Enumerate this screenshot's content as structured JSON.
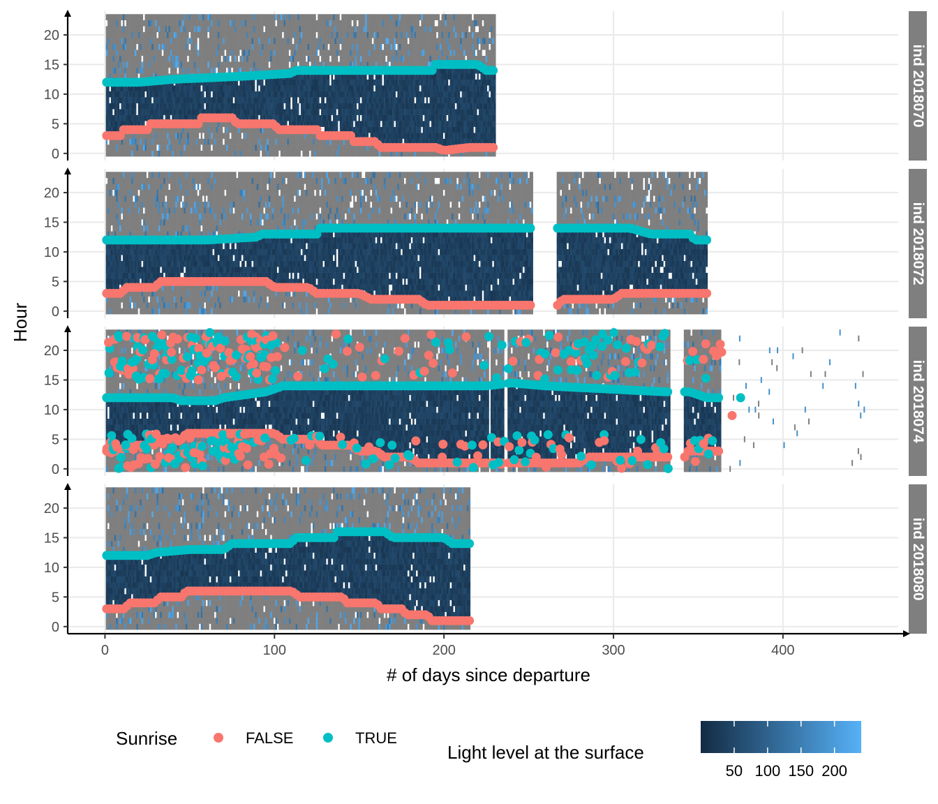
{
  "chart_data": {
    "type": "heatmap",
    "xlabel": "# of days since departure",
    "ylabel": "Hour",
    "xlim": [
      -22,
      468
    ],
    "ylim": [
      -1.2,
      24
    ],
    "x_ticks": [
      0,
      100,
      200,
      300,
      400
    ],
    "y_ticks": [
      0,
      5,
      10,
      15,
      20
    ],
    "grid": true,
    "fill_scale": {
      "title": "Light level at the surface",
      "ticks": [
        50,
        100,
        150,
        200
      ],
      "range": [
        0,
        240
      ],
      "low_color": "#132b43",
      "high_color": "#56b1f7",
      "na_color": "#7f7f7f"
    },
    "color_scale": {
      "title": "Sunrise",
      "entries": [
        {
          "label": "FALSE",
          "color": "#f8766d"
        },
        {
          "label": "TRUE",
          "color": "#00bfc4"
        }
      ]
    },
    "panels": [
      {
        "label": "ind_2018070",
        "data_ranges": [
          [
            0.5,
            230.5
          ]
        ],
        "sunrise_true": [
          [
            0,
            12
          ],
          [
            20,
            12
          ],
          [
            40,
            12.5
          ],
          [
            80,
            13
          ],
          [
            110,
            13.5
          ],
          [
            112,
            14
          ],
          [
            160,
            14
          ],
          [
            193,
            14
          ],
          [
            195,
            15
          ],
          [
            220,
            15
          ],
          [
            225,
            14
          ],
          [
            230,
            14
          ]
        ],
        "sunrise_false": [
          [
            0,
            3
          ],
          [
            10,
            3
          ],
          [
            11,
            4
          ],
          [
            25,
            4
          ],
          [
            27,
            5
          ],
          [
            55,
            5
          ],
          [
            56,
            6
          ],
          [
            75,
            6
          ],
          [
            78,
            5
          ],
          [
            100,
            5
          ],
          [
            102,
            4
          ],
          [
            125,
            4
          ],
          [
            127,
            3
          ],
          [
            145,
            3
          ],
          [
            147,
            2
          ],
          [
            160,
            2
          ],
          [
            162,
            1
          ],
          [
            195,
            1
          ],
          [
            200,
            0.5
          ],
          [
            215,
            1
          ],
          [
            230,
            1
          ]
        ]
      },
      {
        "label": "ind_2018072",
        "data_ranges": [
          [
            0.5,
            252.5
          ],
          [
            267,
            355
          ]
        ],
        "sunrise_true": [
          [
            0,
            12
          ],
          [
            60,
            12
          ],
          [
            90,
            12.5
          ],
          [
            92,
            13
          ],
          [
            125,
            13
          ],
          [
            127,
            14
          ],
          [
            180,
            14
          ],
          [
            252,
            14
          ],
          [
            267,
            14
          ],
          [
            310,
            14
          ],
          [
            322,
            13
          ],
          [
            345,
            13
          ],
          [
            348,
            12
          ],
          [
            355,
            12
          ]
        ],
        "sunrise_false": [
          [
            0,
            3
          ],
          [
            10,
            3
          ],
          [
            12,
            4
          ],
          [
            30,
            4
          ],
          [
            32,
            5
          ],
          [
            95,
            5
          ],
          [
            100,
            4
          ],
          [
            120,
            4
          ],
          [
            125,
            3
          ],
          [
            150,
            3
          ],
          [
            157,
            2
          ],
          [
            185,
            2
          ],
          [
            190,
            1
          ],
          [
            252,
            1
          ],
          [
            267,
            1
          ],
          [
            270,
            2
          ],
          [
            300,
            2
          ],
          [
            305,
            3
          ],
          [
            355,
            3
          ]
        ]
      },
      {
        "label": "ind_2018074",
        "data_ranges": [
          [
            0.5,
            226
          ],
          [
            228,
            235
          ],
          [
            238,
            333
          ],
          [
            342,
            363
          ]
        ],
        "sunrise_true": [
          [
            0,
            12
          ],
          [
            40,
            12
          ],
          [
            45,
            11.5
          ],
          [
            65,
            11.5
          ],
          [
            70,
            12
          ],
          [
            95,
            13
          ],
          [
            105,
            14
          ],
          [
            225,
            14
          ],
          [
            240,
            14.5
          ],
          [
            260,
            14
          ],
          [
            330,
            13
          ],
          [
            345,
            13
          ],
          [
            355,
            12
          ],
          [
            363,
            12
          ]
        ],
        "sunrise_false": [
          [
            0,
            3
          ],
          [
            10,
            3
          ],
          [
            12,
            4
          ],
          [
            30,
            4
          ],
          [
            32,
            5
          ],
          [
            45,
            5
          ],
          [
            48,
            6
          ],
          [
            100,
            6
          ],
          [
            105,
            5
          ],
          [
            125,
            5
          ],
          [
            128,
            4
          ],
          [
            145,
            4
          ],
          [
            150,
            3
          ],
          [
            160,
            3
          ],
          [
            165,
            2
          ],
          [
            180,
            2
          ],
          [
            185,
            1
          ],
          [
            240,
            1
          ],
          [
            280,
            1
          ],
          [
            285,
            2
          ],
          [
            335,
            2
          ],
          [
            342,
            2
          ],
          [
            344,
            3
          ],
          [
            363,
            3
          ]
        ],
        "outliers_true": [
          [
            375,
            12
          ]
        ],
        "outliers_false": [
          [
            370,
            9
          ]
        ]
      },
      {
        "label": "ind_2018080",
        "data_ranges": [
          [
            0.5,
            215
          ]
        ],
        "sunrise_true": [
          [
            0,
            12
          ],
          [
            25,
            12
          ],
          [
            30,
            12.5
          ],
          [
            50,
            13
          ],
          [
            70,
            13
          ],
          [
            75,
            14
          ],
          [
            110,
            14
          ],
          [
            112,
            15
          ],
          [
            135,
            15
          ],
          [
            137,
            16
          ],
          [
            165,
            16
          ],
          [
            170,
            15
          ],
          [
            200,
            15
          ],
          [
            205,
            14
          ],
          [
            215,
            14
          ]
        ],
        "sunrise_false": [
          [
            0,
            3
          ],
          [
            12,
            3
          ],
          [
            14,
            4
          ],
          [
            30,
            4
          ],
          [
            32,
            5
          ],
          [
            45,
            5
          ],
          [
            48,
            6
          ],
          [
            110,
            6
          ],
          [
            115,
            5
          ],
          [
            140,
            5
          ],
          [
            143,
            4
          ],
          [
            160,
            4
          ],
          [
            163,
            3
          ],
          [
            175,
            3
          ],
          [
            178,
            2
          ],
          [
            190,
            2
          ],
          [
            193,
            1
          ],
          [
            215,
            1
          ]
        ]
      }
    ]
  }
}
